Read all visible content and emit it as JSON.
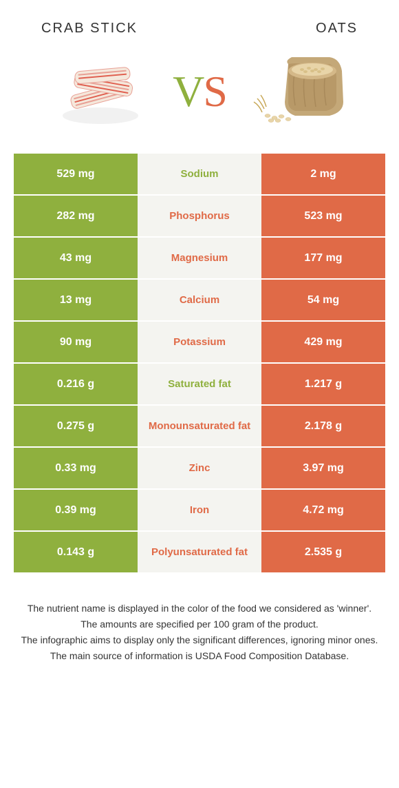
{
  "header": {
    "left_title": "CRAB STICK",
    "right_title": "OATS",
    "vs_v": "V",
    "vs_s": "S"
  },
  "colors": {
    "left": "#8fb03e",
    "right": "#e06a47",
    "mid_bg": "#f4f4f0",
    "text": "#333333",
    "white": "#ffffff"
  },
  "rows": [
    {
      "left": "529 mg",
      "label": "Sodium",
      "right": "2 mg",
      "winner": "left"
    },
    {
      "left": "282 mg",
      "label": "Phosphorus",
      "right": "523 mg",
      "winner": "right"
    },
    {
      "left": "43 mg",
      "label": "Magnesium",
      "right": "177 mg",
      "winner": "right"
    },
    {
      "left": "13 mg",
      "label": "Calcium",
      "right": "54 mg",
      "winner": "right"
    },
    {
      "left": "90 mg",
      "label": "Potassium",
      "right": "429 mg",
      "winner": "right"
    },
    {
      "left": "0.216 g",
      "label": "Saturated fat",
      "right": "1.217 g",
      "winner": "left"
    },
    {
      "left": "0.275 g",
      "label": "Monounsaturated fat",
      "right": "2.178 g",
      "winner": "right"
    },
    {
      "left": "0.33 mg",
      "label": "Zinc",
      "right": "3.97 mg",
      "winner": "right"
    },
    {
      "left": "0.39 mg",
      "label": "Iron",
      "right": "4.72 mg",
      "winner": "right"
    },
    {
      "left": "0.143 g",
      "label": "Polyunsaturated fat",
      "right": "2.535 g",
      "winner": "right"
    }
  ],
  "footer": {
    "line1": "The nutrient name is displayed in the color of the food we considered as 'winner'.",
    "line2": "The amounts are specified per 100 gram of the product.",
    "line3": "The infographic aims to display only the significant differences, ignoring minor ones.",
    "line4": "The main source of information is USDA Food Composition Database."
  }
}
